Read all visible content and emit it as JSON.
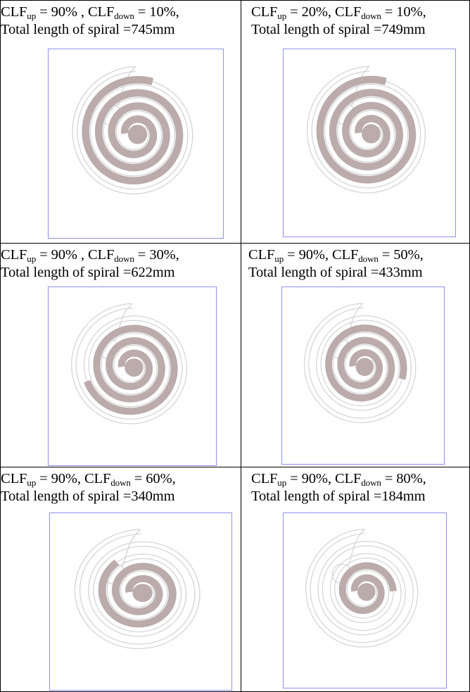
{
  "colors": {
    "spiral": "#bbabab",
    "guide": "#d6d6d6",
    "frame": "#8f8ff0"
  },
  "cells": [
    {
      "clf_up": "90%",
      "clf_down": "10%",
      "sep": " , ",
      "total": "Total length of spiral =745mm",
      "arc_start": 0.5,
      "arc_end": 3.8
    },
    {
      "clf_up": "20%",
      "clf_down": "10%",
      "sep": ", ",
      "total": "Total length of spiral =749mm",
      "arc_start": 0.5,
      "arc_end": 3.8
    },
    {
      "clf_up": "90%",
      "clf_down": "30%",
      "sep": " , ",
      "total": "Total length of spiral =622mm",
      "arc_start": 0.5,
      "arc_end": 3.45
    },
    {
      "clf_up": "90%",
      "clf_down": "50%",
      "sep": ", ",
      "total": "Total length of spiral =433mm",
      "arc_start": 0.5,
      "arc_end": 3.05
    },
    {
      "clf_up": "90%",
      "clf_down": "60%",
      "sep": ", ",
      "total": "Total length of spiral =340mm",
      "arc_start": 0.5,
      "arc_end": 2.65
    },
    {
      "clf_up": "90%",
      "clf_down": "80%",
      "sep": ", ",
      "total": "Total length of spiral =184mm",
      "arc_start": 0.5,
      "arc_end": 2.0
    }
  ]
}
